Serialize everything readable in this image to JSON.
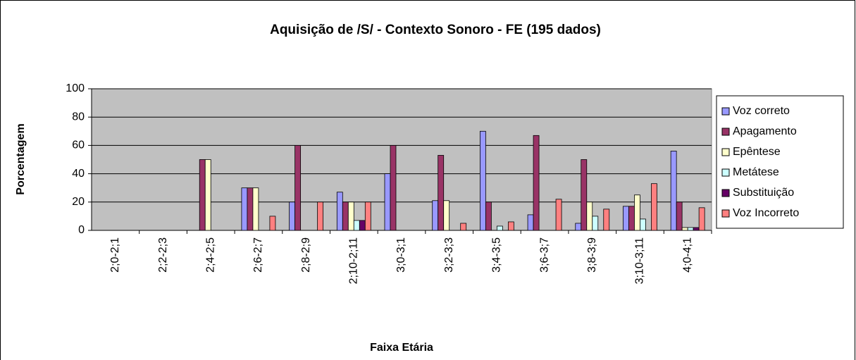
{
  "chart_data": {
    "type": "bar",
    "title": "Aquisição de /S/ - Contexto Sonoro - FE (195 dados)",
    "x_label": "Faixa Etária",
    "y_label": "Porcentagem",
    "categories": [
      "2;0-2;1",
      "2;2-2;3",
      "2;4-2;5",
      "2;6-2;7",
      "2;8-2;9",
      "2;10-2;11",
      "3;0-3;1",
      "3;2-3;3",
      "3;4-3;5",
      "3;6-3;7",
      "3;8-3;9",
      "3;10-3;11",
      "4;0-4;1"
    ],
    "series": [
      {
        "name": "Voz correto",
        "color": "#9999ff",
        "values": [
          0,
          0,
          0,
          30,
          20,
          27,
          40,
          21,
          70,
          11,
          5,
          17,
          56
        ]
      },
      {
        "name": "Apagamento",
        "color": "#993366",
        "values": [
          0,
          0,
          50,
          30,
          60,
          20,
          60,
          53,
          20,
          67,
          50,
          17,
          20
        ]
      },
      {
        "name": "Epêntese",
        "color": "#ffffcc",
        "values": [
          0,
          0,
          50,
          30,
          0,
          20,
          0,
          21,
          0,
          0,
          20,
          25,
          2
        ]
      },
      {
        "name": "Metátese",
        "color": "#ccffff",
        "values": [
          0,
          0,
          0,
          0,
          0,
          7,
          0,
          0,
          3,
          0,
          10,
          8,
          2
        ]
      },
      {
        "name": "Substituição",
        "color": "#660066",
        "values": [
          0,
          0,
          0,
          0,
          0,
          7,
          0,
          0,
          0,
          0,
          0,
          0,
          2
        ]
      },
      {
        "name": " Voz Incorreto",
        "color": "#ff8080",
        "values": [
          0,
          0,
          0,
          10,
          20,
          20,
          0,
          5,
          6,
          22,
          15,
          33,
          16
        ]
      }
    ],
    "ylim": [
      0,
      100
    ],
    "yticks": [
      0,
      20,
      40,
      60,
      80,
      100
    ],
    "grid": true,
    "legend": "right"
  }
}
